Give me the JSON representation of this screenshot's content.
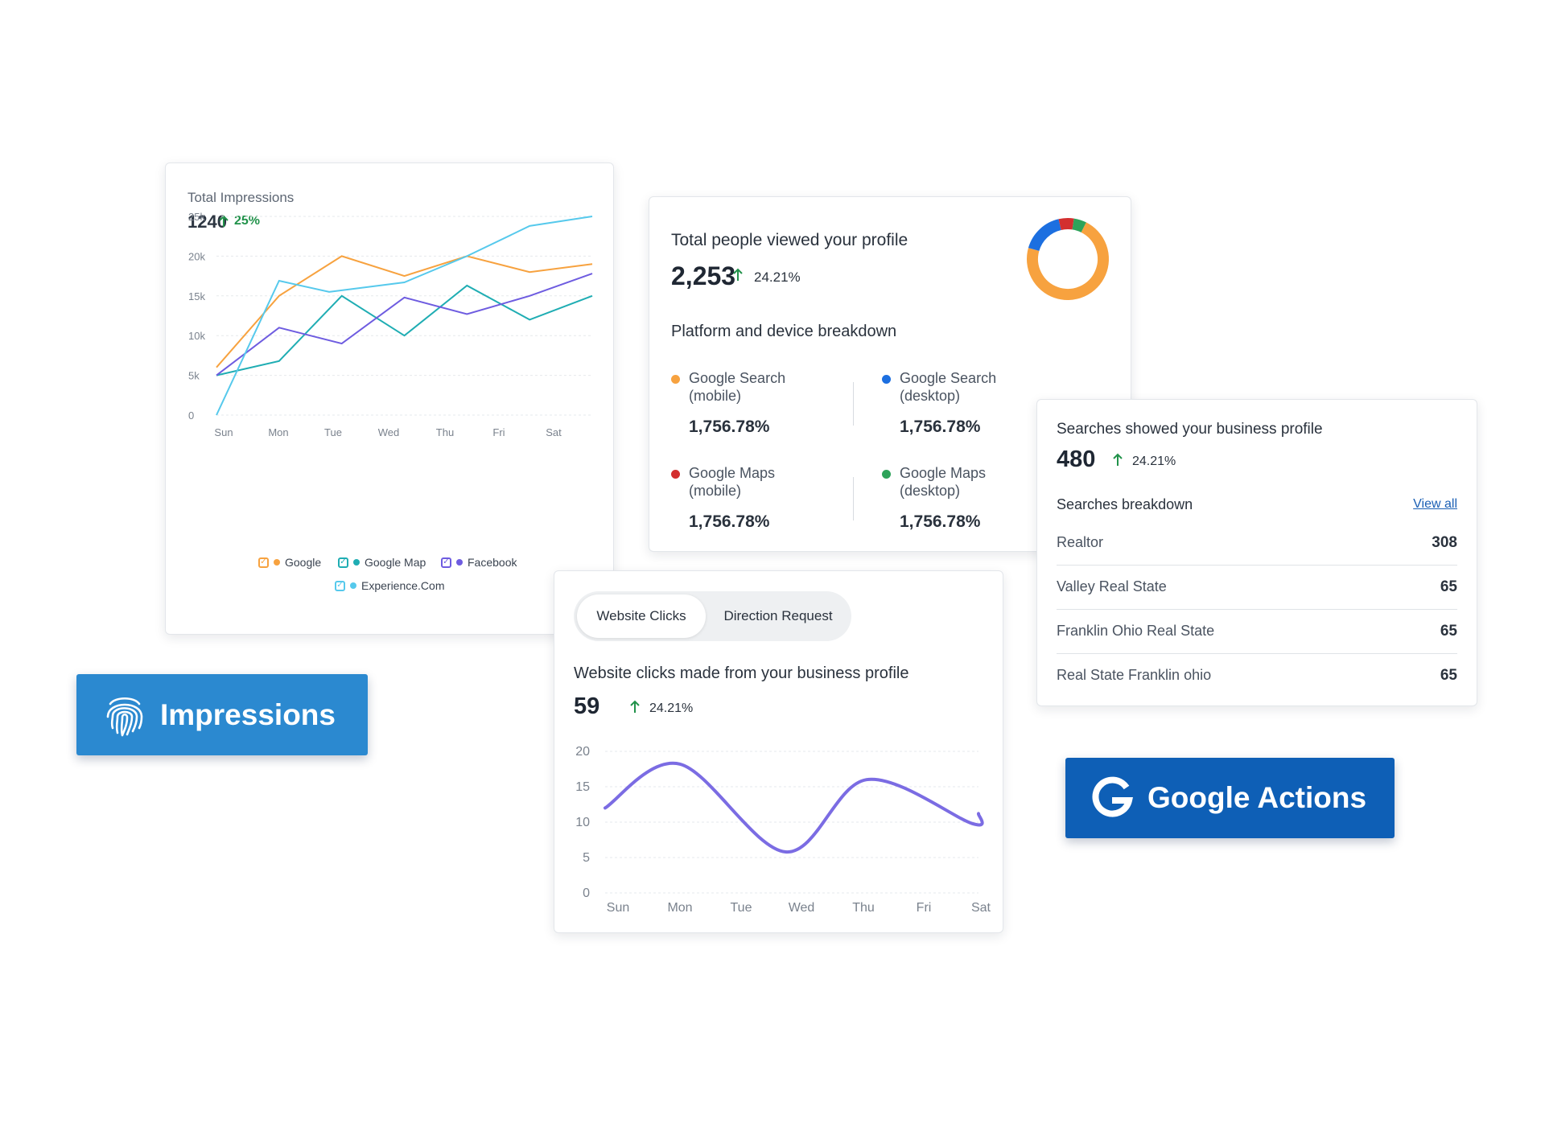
{
  "colors": {
    "google": "#f7a23f",
    "google_map": "#1fadb3",
    "facebook": "#6e5ce0",
    "experience": "#56c9ec",
    "search_mobile": "#f7a23f",
    "search_desktop": "#1c6fe0",
    "maps_mobile": "#d32f2f",
    "maps_desktop": "#2ea35a",
    "impressions_badge": "#2b89d0",
    "google_actions_badge": "#0e5fb6",
    "wave": "#7b6ce3"
  },
  "impressions": {
    "label": "Total Impressions",
    "total": "1240",
    "change": "25%",
    "legend": [
      "Google",
      "Google Map",
      "Facebook",
      "Experience.Com"
    ]
  },
  "profile": {
    "title": "Total people viewed your profile",
    "total": "2,253",
    "change": "24.21%",
    "breakdown_title": "Platform and device breakdown",
    "items": [
      {
        "name_line1": "Google Search",
        "name_line2": "(mobile)",
        "value": "1,756.78%"
      },
      {
        "name_line1": "Google Search",
        "name_line2": "(desktop)",
        "value": "1,756.78%"
      },
      {
        "name_line1": "Google Maps",
        "name_line2": "(mobile)",
        "value": "1,756.78%"
      },
      {
        "name_line1": "Google Maps",
        "name_line2": "(desktop)",
        "value": "1,756.78%"
      }
    ]
  },
  "searches": {
    "title": "Searches showed your business profile",
    "total": "480",
    "change": "24.21%",
    "breakdown_title": "Searches breakdown",
    "view_all": "View all",
    "rows": [
      {
        "name": "Realtor",
        "value": "308"
      },
      {
        "name": "Valley Real State",
        "value": "65"
      },
      {
        "name": "Franklin Ohio Real State",
        "value": "65"
      },
      {
        "name": "Real State Franklin ohio",
        "value": "65"
      }
    ]
  },
  "website": {
    "tabs": [
      "Website Clicks",
      "Direction Request"
    ],
    "title": "Website clicks made from your business profile",
    "total": "59",
    "change": "24.21%"
  },
  "badges": {
    "impressions": "Impressions",
    "google_actions": "Google Actions"
  },
  "chart_data": [
    {
      "type": "line",
      "x": [
        "Sun",
        "Mon",
        "Tue",
        "Wed",
        "Thu",
        "Fri",
        "Sat"
      ],
      "ylim": [
        0,
        25000
      ],
      "yticks": [
        "0",
        "5k",
        "10k",
        "15k",
        "20k",
        "25k"
      ],
      "grid": true,
      "legend_position": "bottom",
      "series": [
        {
          "name": "Google",
          "color": "#f7a23f",
          "x": [
            0,
            1,
            2,
            3,
            4,
            5,
            6
          ],
          "values": [
            6000,
            15000,
            20000,
            17500,
            20000,
            18000,
            19000
          ]
        },
        {
          "name": "Google Map",
          "color": "#1fadb3",
          "x": [
            0,
            1,
            2,
            3,
            4,
            5,
            6
          ],
          "values": [
            5000,
            6800,
            15000,
            10000,
            16300,
            12000,
            15000
          ]
        },
        {
          "name": "Facebook",
          "color": "#6e5ce0",
          "x": [
            0,
            1,
            2,
            3,
            4,
            5,
            6
          ],
          "values": [
            5000,
            11000,
            9000,
            14800,
            12700,
            15000,
            17800
          ]
        },
        {
          "name": "Experience.Com",
          "color": "#56c9ec",
          "x": [
            0,
            1,
            1.8,
            3,
            4,
            5,
            6
          ],
          "values": [
            0,
            16900,
            15500,
            16700,
            20000,
            23800,
            25000
          ]
        }
      ]
    },
    {
      "type": "line",
      "x": [
        "Sun",
        "Mon",
        "Tue",
        "Wed",
        "Thu",
        "Fri",
        "Sat"
      ],
      "ylim": [
        0,
        20
      ],
      "yticks": [
        "0",
        "5",
        "10",
        "15",
        "20"
      ],
      "grid": true,
      "series": [
        {
          "color": "#7b6ce3",
          "x": [
            0,
            1.2,
            2.9,
            4.2,
            5.9,
            6
          ],
          "values": [
            12,
            18.2,
            5.8,
            16,
            9.8,
            11.2
          ]
        }
      ]
    },
    {
      "type": "pie",
      "categories": [
        "Google Search (mobile)",
        "Google Search (desktop)",
        "Google Maps (mobile)",
        "Google Maps (desktop)"
      ],
      "values": [
        72,
        17,
        6,
        5
      ],
      "colors": [
        "#f7a23f",
        "#1c6fe0",
        "#d32f2f",
        "#2ea35a"
      ]
    }
  ]
}
